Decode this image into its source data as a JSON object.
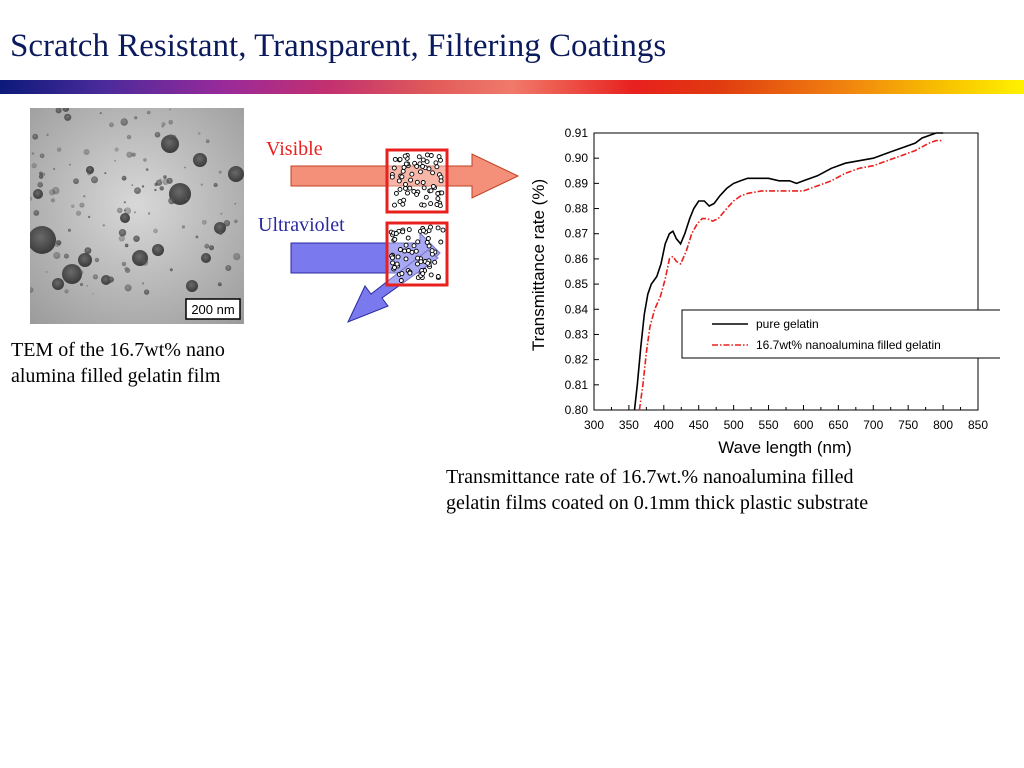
{
  "slide": {
    "title": "Scratch Resistant, Transparent, Filtering Coatings"
  },
  "tem": {
    "scale_bar_label": "200 nm",
    "caption_line1": "TEM of the 16.7wt% nano",
    "caption_line2": "alumina filled gelatin film"
  },
  "diagram": {
    "visible_label": "Visible",
    "uv_label": "Ultraviolet",
    "colors": {
      "visible_arrow": "#f4907a",
      "uv_arrow": "#7a7aee",
      "filter_border": "#e8201e"
    }
  },
  "chart_caption": {
    "line1": "Transmittance rate of 16.7wt.% nanoalumina filled",
    "line2": "gelatin films  coated on 0.1mm thick plastic substrate"
  },
  "chart_data": {
    "type": "line",
    "title": "",
    "xlabel": "Wave length (nm)",
    "ylabel": "Transmittance rate (%)",
    "xlim": [
      300,
      850
    ],
    "ylim": [
      0.8,
      0.91
    ],
    "xticks": [
      300,
      350,
      400,
      450,
      500,
      550,
      600,
      650,
      700,
      750,
      800,
      850
    ],
    "yticks": [
      "0.80",
      "0.81",
      "0.82",
      "0.83",
      "0.84",
      "0.85",
      "0.86",
      "0.87",
      "0.88",
      "0.89",
      "0.90",
      "0.91"
    ],
    "grid": false,
    "legend_position": "center-right",
    "series": [
      {
        "name": "pure gelatin",
        "color": "#000000",
        "style": "solid",
        "points": [
          [
            358,
            0.8
          ],
          [
            362,
            0.81
          ],
          [
            367,
            0.825
          ],
          [
            372,
            0.838
          ],
          [
            377,
            0.846
          ],
          [
            382,
            0.85
          ],
          [
            390,
            0.853
          ],
          [
            396,
            0.858
          ],
          [
            402,
            0.866
          ],
          [
            408,
            0.87
          ],
          [
            413,
            0.871
          ],
          [
            418,
            0.868
          ],
          [
            424,
            0.866
          ],
          [
            430,
            0.87
          ],
          [
            437,
            0.876
          ],
          [
            443,
            0.88
          ],
          [
            450,
            0.883
          ],
          [
            458,
            0.883
          ],
          [
            465,
            0.881
          ],
          [
            472,
            0.882
          ],
          [
            480,
            0.885
          ],
          [
            490,
            0.888
          ],
          [
            500,
            0.89
          ],
          [
            510,
            0.891
          ],
          [
            520,
            0.892
          ],
          [
            535,
            0.892
          ],
          [
            550,
            0.892
          ],
          [
            565,
            0.891
          ],
          [
            580,
            0.891
          ],
          [
            590,
            0.89
          ],
          [
            600,
            0.891
          ],
          [
            620,
            0.893
          ],
          [
            640,
            0.896
          ],
          [
            660,
            0.898
          ],
          [
            680,
            0.899
          ],
          [
            700,
            0.9
          ],
          [
            720,
            0.902
          ],
          [
            740,
            0.904
          ],
          [
            760,
            0.906
          ],
          [
            770,
            0.908
          ],
          [
            780,
            0.909
          ],
          [
            790,
            0.91
          ],
          [
            800,
            0.91
          ]
        ]
      },
      {
        "name": "16.7wt% nanoalumina filled gelatin",
        "color": "#e8201e",
        "style": "dash-dot",
        "points": [
          [
            365,
            0.8
          ],
          [
            370,
            0.81
          ],
          [
            375,
            0.823
          ],
          [
            380,
            0.833
          ],
          [
            387,
            0.84
          ],
          [
            395,
            0.845
          ],
          [
            402,
            0.852
          ],
          [
            408,
            0.86
          ],
          [
            413,
            0.861
          ],
          [
            418,
            0.859
          ],
          [
            424,
            0.858
          ],
          [
            432,
            0.863
          ],
          [
            440,
            0.87
          ],
          [
            448,
            0.874
          ],
          [
            455,
            0.876
          ],
          [
            462,
            0.876
          ],
          [
            470,
            0.875
          ],
          [
            478,
            0.876
          ],
          [
            490,
            0.88
          ],
          [
            500,
            0.883
          ],
          [
            510,
            0.885
          ],
          [
            520,
            0.886
          ],
          [
            540,
            0.887
          ],
          [
            560,
            0.887
          ],
          [
            580,
            0.887
          ],
          [
            600,
            0.887
          ],
          [
            620,
            0.889
          ],
          [
            640,
            0.891
          ],
          [
            660,
            0.894
          ],
          [
            680,
            0.896
          ],
          [
            700,
            0.897
          ],
          [
            720,
            0.899
          ],
          [
            740,
            0.901
          ],
          [
            760,
            0.903
          ],
          [
            780,
            0.906
          ],
          [
            790,
            0.907
          ],
          [
            800,
            0.907
          ]
        ]
      }
    ]
  }
}
